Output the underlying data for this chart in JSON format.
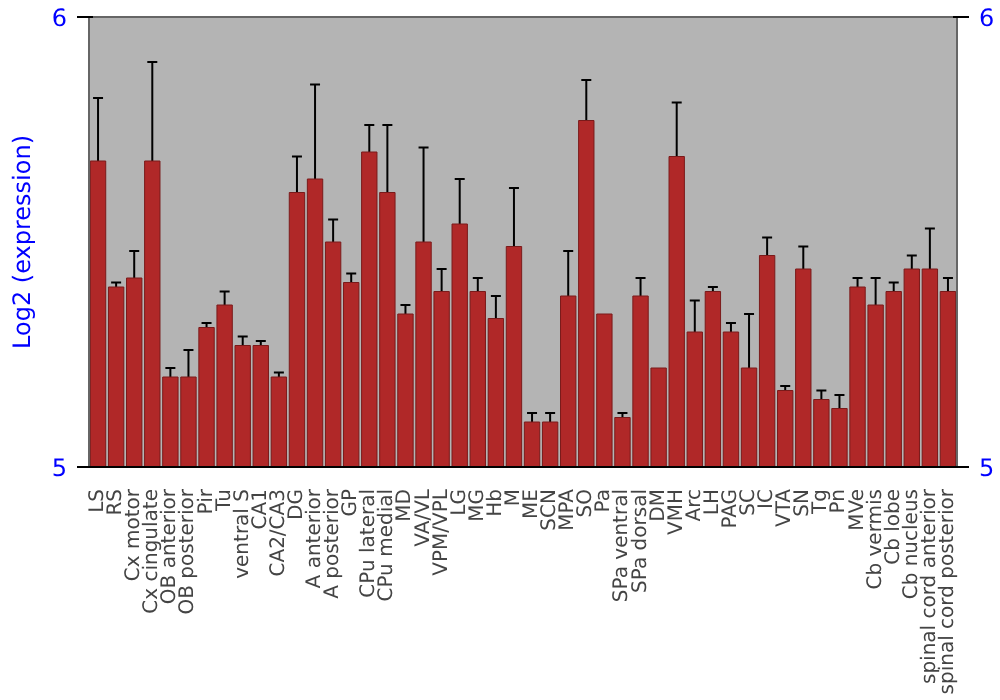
{
  "chart_data": {
    "type": "bar",
    "ylabel": "Log2 (expression)",
    "categories": [
      "LS",
      "RS",
      "Cx motor",
      "Cx cingulate",
      "OB anterior",
      "OB posterior",
      "Pir",
      "Tu",
      "ventral S",
      "CA1",
      "CA2/CA3",
      "DG",
      "A anterior",
      "A posterior",
      "GP",
      "CPu lateral",
      "CPu medial",
      "MD",
      "VA/VL",
      "VPM/VPL",
      "LG",
      "MG",
      "Hb",
      "M",
      "ME",
      "SCN",
      "MPA",
      "SO",
      "Pa",
      "SPa ventral",
      "SPa dorsal",
      "DM",
      "VMH",
      "Arc",
      "LH",
      "PAG",
      "SC",
      "IC",
      "VTA",
      "SN",
      "Tg",
      "Pn",
      "MVe",
      "Cb vermis",
      "Cb lobe",
      "Cb nucleus",
      "spinal cord anterior",
      "spinal cord posterior"
    ],
    "values": [
      5.68,
      5.4,
      5.42,
      5.68,
      5.2,
      5.2,
      5.31,
      5.36,
      5.27,
      5.27,
      5.2,
      5.61,
      5.64,
      5.5,
      5.41,
      5.7,
      5.61,
      5.34,
      5.5,
      5.39,
      5.54,
      5.39,
      5.33,
      5.49,
      5.1,
      5.1,
      5.38,
      5.77,
      5.34,
      5.11,
      5.38,
      5.22,
      5.69,
      5.3,
      5.39,
      5.3,
      5.22,
      5.47,
      5.17,
      5.44,
      5.15,
      5.13,
      5.4,
      5.36,
      5.39,
      5.44,
      5.44,
      5.39
    ],
    "errors": [
      0.14,
      0.01,
      0.06,
      0.22,
      0.02,
      0.06,
      0.01,
      0.03,
      0.02,
      0.01,
      0.01,
      0.08,
      0.21,
      0.05,
      0.02,
      0.06,
      0.15,
      0.02,
      0.21,
      0.05,
      0.1,
      0.03,
      0.05,
      0.13,
      0.02,
      0.02,
      0.1,
      0.09,
      null,
      0.01,
      0.04,
      null,
      0.12,
      0.07,
      0.01,
      0.02,
      0.12,
      0.04,
      0.01,
      0.05,
      0.02,
      0.03,
      0.02,
      0.06,
      0.02,
      0.03,
      0.09,
      0.03
    ],
    "color": "#b02828",
    "ylim": [
      5,
      6
    ],
    "yticks": [
      5,
      6
    ],
    "y2lim": [
      5,
      6
    ],
    "y2ticks": [
      5,
      6
    ],
    "grid": false
  }
}
